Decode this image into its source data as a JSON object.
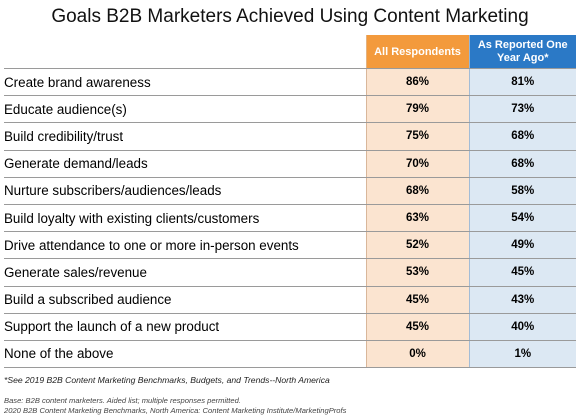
{
  "chart_data": {
    "type": "table",
    "title": "Goals B2B Marketers Achieved Using Content Marketing",
    "columns": [
      "All Respondents",
      "As Reported One Year Ago*"
    ],
    "rows": [
      {
        "label": "Create brand awareness",
        "all": "86%",
        "prev": "81%"
      },
      {
        "label": "Educate audience(s)",
        "all": "79%",
        "prev": "73%"
      },
      {
        "label": "Build credibility/trust",
        "all": "75%",
        "prev": "68%"
      },
      {
        "label": "Generate demand/leads",
        "all": "70%",
        "prev": "68%"
      },
      {
        "label": "Nurture subscribers/audiences/leads",
        "all": "68%",
        "prev": "58%"
      },
      {
        "label": "Build loyalty with existing clients/customers",
        "all": "63%",
        "prev": "54%"
      },
      {
        "label": "Drive attendance to one or more in-person events",
        "all": "52%",
        "prev": "49%"
      },
      {
        "label": "Generate sales/revenue",
        "all": "53%",
        "prev": "45%"
      },
      {
        "label": "Build a subscribed audience",
        "all": "45%",
        "prev": "43%"
      },
      {
        "label": "Support the launch of a new product",
        "all": "45%",
        "prev": "40%"
      },
      {
        "label": "None of the above",
        "all": "0%",
        "prev": "1%"
      }
    ]
  },
  "footnotes": {
    "note": "*See 2019 B2B Content Marketing Benchmarks, Budgets, and Trends--North America",
    "base": "Base: B2B content marketers. Aided list; multiple responses permitted.",
    "source": "2020 B2B Content Marketing Benchmarks, North America: Content Marketing Institute/MarketingProfs"
  },
  "colors": {
    "all_header": "#f39a3c",
    "all_cell": "#fbe4d0",
    "prev_header": "#2b79c6",
    "prev_cell": "#dce8f3"
  }
}
